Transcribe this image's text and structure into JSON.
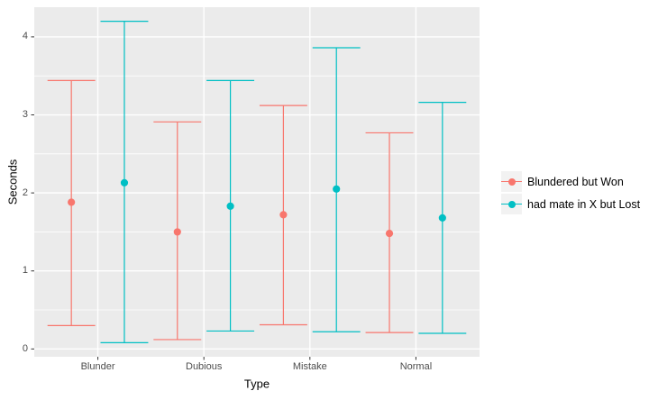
{
  "chart_data": {
    "type": "errorbar-pointrange",
    "title": "",
    "xlabel": "Type",
    "ylabel": "Seconds",
    "categories": [
      "Blunder",
      "Dubious",
      "Mistake",
      "Normal"
    ],
    "yticks": [
      0,
      1,
      2,
      3,
      4
    ],
    "ylim": [
      -0.1,
      4.38
    ],
    "grid": "on",
    "legend_position": "right",
    "colors": {
      "panel_background": "#EBEBEB",
      "grid": "#FFFFFF",
      "tick_mark": "#333333",
      "axis_text": "#4D4D4D",
      "axis_title": "#000000",
      "legend_key_background": "#F2F2F2"
    },
    "series": [
      {
        "name": "Blundered but Won",
        "color": "#F8766D",
        "points": [
          {
            "category": "Blunder",
            "mean": 1.88,
            "low": 0.3,
            "high": 3.44
          },
          {
            "category": "Dubious",
            "mean": 1.5,
            "low": 0.12,
            "high": 2.91
          },
          {
            "category": "Mistake",
            "mean": 1.72,
            "low": 0.31,
            "high": 3.12
          },
          {
            "category": "Normal",
            "mean": 1.48,
            "low": 0.21,
            "high": 2.77
          }
        ]
      },
      {
        "name": "had mate in X but Lost",
        "color": "#00BFC4",
        "points": [
          {
            "category": "Blunder",
            "mean": 2.13,
            "low": 0.08,
            "high": 4.2
          },
          {
            "category": "Dubious",
            "mean": 1.83,
            "low": 0.23,
            "high": 3.44
          },
          {
            "category": "Mistake",
            "mean": 2.05,
            "low": 0.22,
            "high": 3.86
          },
          {
            "category": "Normal",
            "mean": 1.68,
            "low": 0.2,
            "high": 3.16
          }
        ]
      }
    ]
  }
}
